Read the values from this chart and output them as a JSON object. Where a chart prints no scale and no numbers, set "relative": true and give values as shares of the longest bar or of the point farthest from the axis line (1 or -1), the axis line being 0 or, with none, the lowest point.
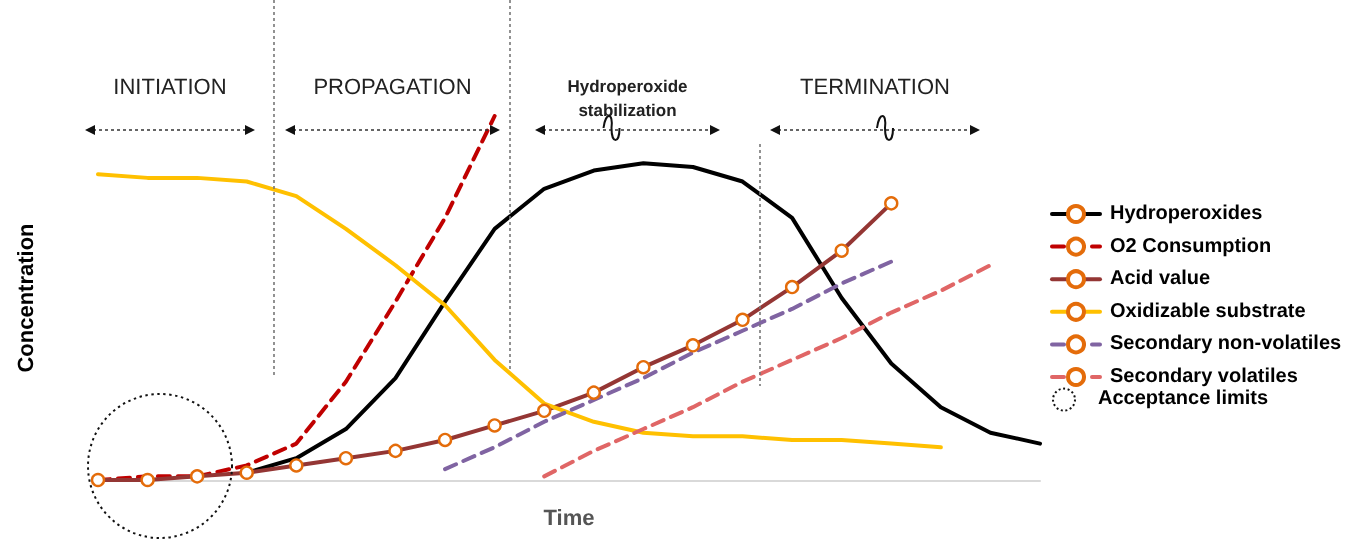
{
  "chart_data": {
    "type": "line",
    "relative": true,
    "xlabel": "Time",
    "ylabel": "Concentration",
    "legend": "right",
    "annotations": [
      "INITIATION",
      "PROPAGATION",
      "Hydroperoxide stabilization",
      "TERMINATION",
      "Acceptance limits"
    ],
    "categories": [
      null,
      null,
      null,
      null,
      null,
      null,
      null,
      null,
      null,
      null,
      null,
      null,
      null,
      null,
      null,
      null,
      null,
      null,
      null,
      null
    ],
    "series": [
      {
        "name": "Hydroperoxides",
        "color": "#000000",
        "line_style": "solid",
        "marker": "none",
        "values": [
          null,
          null,
          null,
          0.02,
          0.06,
          0.14,
          0.28,
          0.49,
          0.69,
          0.8,
          0.85,
          0.87,
          0.86,
          0.82,
          0.72,
          0.5,
          0.32,
          0.2,
          0.13,
          0.1
        ]
      },
      {
        "name": "O2 Consumption",
        "color": "#c00000",
        "line_style": "dashed",
        "marker": "none",
        "values": [
          0,
          0.01,
          0.01,
          0.04,
          0.1,
          0.27,
          0.49,
          0.72,
          1,
          null,
          null,
          null,
          null,
          null,
          null,
          null,
          null,
          null,
          null,
          null
        ]
      },
      {
        "name": "Acid value",
        "color": "#943634",
        "line_style": "solid",
        "marker": "circle",
        "values": [
          0,
          0,
          0.01,
          0.02,
          0.04,
          0.06,
          0.08,
          0.11,
          0.15,
          0.19,
          0.24,
          0.31,
          0.37,
          0.44,
          0.53,
          0.63,
          0.76,
          null,
          null,
          null
        ]
      },
      {
        "name": "Oxidizable substrate",
        "color": "#ffc000",
        "line_style": "solid",
        "marker": "none",
        "values": [
          0.84,
          0.83,
          0.83,
          0.82,
          0.78,
          0.69,
          0.59,
          0.48,
          0.33,
          0.21,
          0.16,
          0.13,
          0.12,
          0.12,
          0.11,
          0.11,
          0.1,
          0.09,
          null,
          null
        ]
      },
      {
        "name": "Secondary non-volatiles",
        "color": "#8064a2",
        "line_style": "dashed",
        "marker": "none",
        "values": [
          null,
          null,
          null,
          null,
          null,
          null,
          null,
          0.03,
          0.09,
          0.16,
          0.22,
          0.28,
          0.35,
          0.41,
          0.47,
          0.54,
          0.6,
          null,
          null,
          null
        ]
      },
      {
        "name": "Secondary volatiles",
        "color": "#e06666",
        "line_style": "dashed",
        "marker": "none",
        "values": [
          null,
          null,
          null,
          null,
          null,
          null,
          null,
          null,
          null,
          0.01,
          0.08,
          0.14,
          0.2,
          0.27,
          0.33,
          0.39,
          0.46,
          0.52,
          0.59,
          null
        ]
      }
    ]
  }
}
